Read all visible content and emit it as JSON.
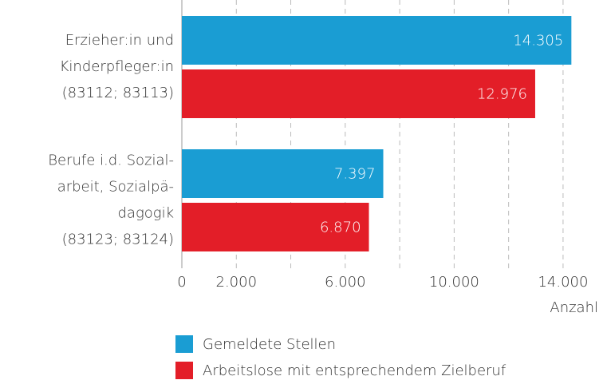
{
  "chart_data": {
    "type": "hbar",
    "categories": [
      "Erzieher:in und\nKinderpfleger:in\n(83112; 83113)",
      "Berufe i.d. Sozial-\narbeit, Sozialpä-\ndagogik\n(83123; 83124)"
    ],
    "series": [
      {
        "name": "Gemeldete Stellen",
        "color": "#1a9dd3",
        "values": [
          14305,
          7397
        ],
        "value_labels": [
          "14.305",
          "7.397"
        ]
      },
      {
        "name": "Arbeitslose mit entsprechendem Zielberuf",
        "color": "#e31e28",
        "values": [
          12976,
          6870
        ],
        "value_labels": [
          "12.976",
          "6.870"
        ]
      }
    ],
    "xlabel": "Anzahl",
    "xlim": [
      0,
      14500
    ],
    "xticks": [
      0,
      {
        "value": 2000,
        "label": "2.000"
      },
      {
        "value": 6000,
        "label": "6.000"
      },
      {
        "value": 10000,
        "label": "10.000"
      },
      {
        "value": 14000,
        "label": "14.000"
      }
    ],
    "minor_xticks": [
      4000,
      8000,
      12000
    ],
    "grid": true
  }
}
